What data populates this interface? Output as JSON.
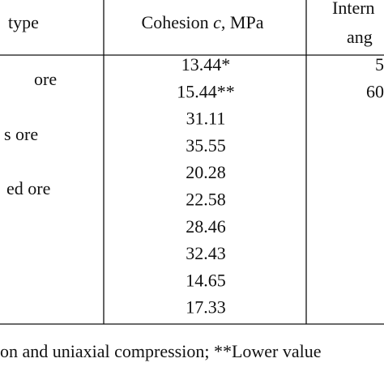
{
  "table": {
    "header": {
      "col1": "type",
      "col2": {
        "pre": "Cohesion ",
        "italic": "c",
        "post": ", MPa"
      },
      "col3": [
        "Intern",
        "ang"
      ]
    },
    "ore_types": [
      "ore",
      "s ore",
      "ed ore"
    ],
    "cohesion": [
      "13.44*",
      "15.44**",
      "31.11",
      "35.55",
      "20.28",
      "22.58",
      "28.46",
      "32.43",
      "14.65",
      "17.33"
    ],
    "friction": [
      "5",
      "60"
    ],
    "footnote": "on and uniaxial compression; **Lower value"
  }
}
